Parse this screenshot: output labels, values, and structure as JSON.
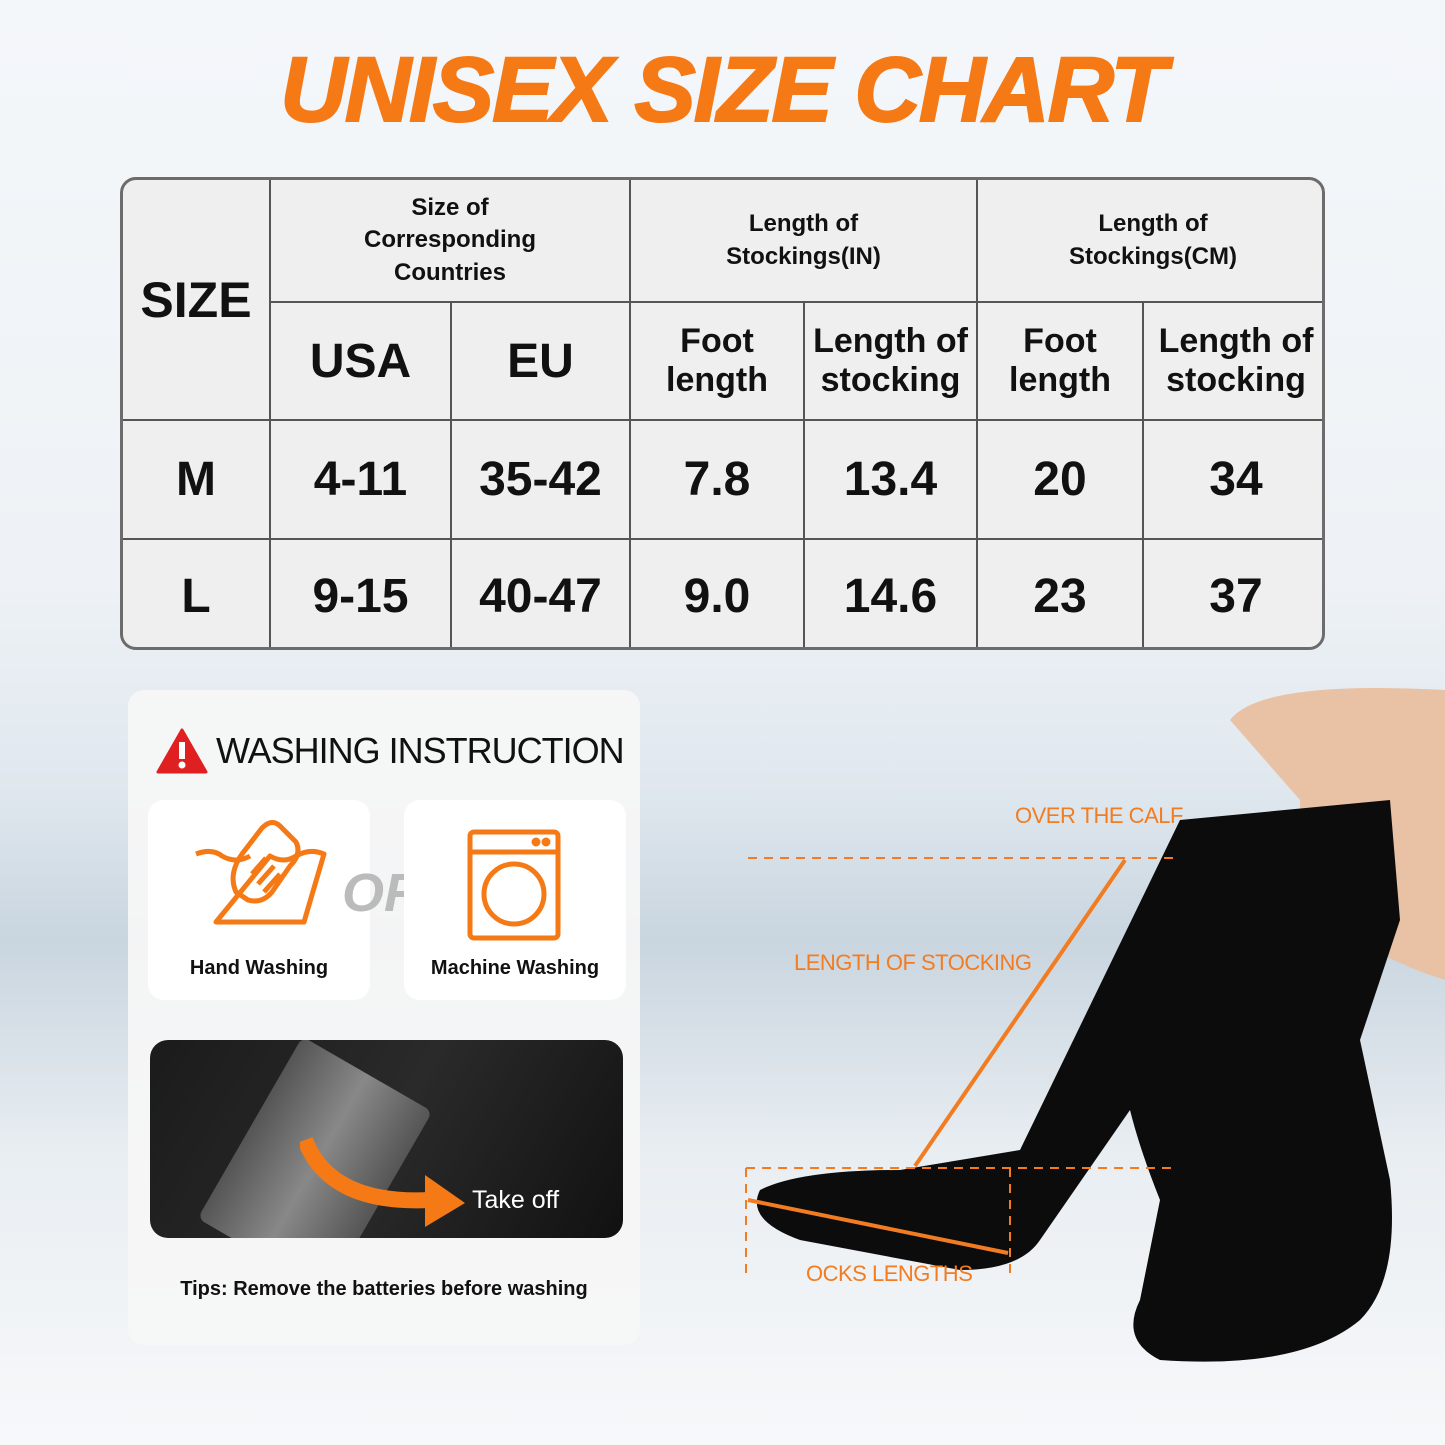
{
  "title": "UNISEX SIZE CHART",
  "table": {
    "size_header": "SIZE",
    "group_headers": [
      "Size of Corresponding Countries",
      "Length of Stockings(IN)",
      "Length of Stockings(CM)"
    ],
    "sub_headers": [
      "USA",
      "EU",
      "Foot length",
      "Length of stocking",
      "Foot length",
      "Length of stocking"
    ],
    "rows": [
      {
        "size": "M",
        "values": [
          "4-11",
          "35-42",
          "7.8",
          "13.4",
          "20",
          "34"
        ]
      },
      {
        "size": "L",
        "values": [
          "9-15",
          "40-47",
          "9.0",
          "14.6",
          "23",
          "37"
        ]
      }
    ]
  },
  "washing": {
    "title": "WASHING INSTRUCTION",
    "hand": "Hand Washing",
    "or": "OR",
    "machine": "Machine Washing",
    "take_off": "Take off",
    "tips": "Tips: Remove the batteries before washing"
  },
  "diagram": {
    "over_calf": "OVER THE CALF",
    "length_stocking": "LENGTH OF STOCKING",
    "socks_lengths": "OCKS LENGTHS"
  },
  "colors": {
    "accent": "#f57a16",
    "warning": "#e02020"
  }
}
